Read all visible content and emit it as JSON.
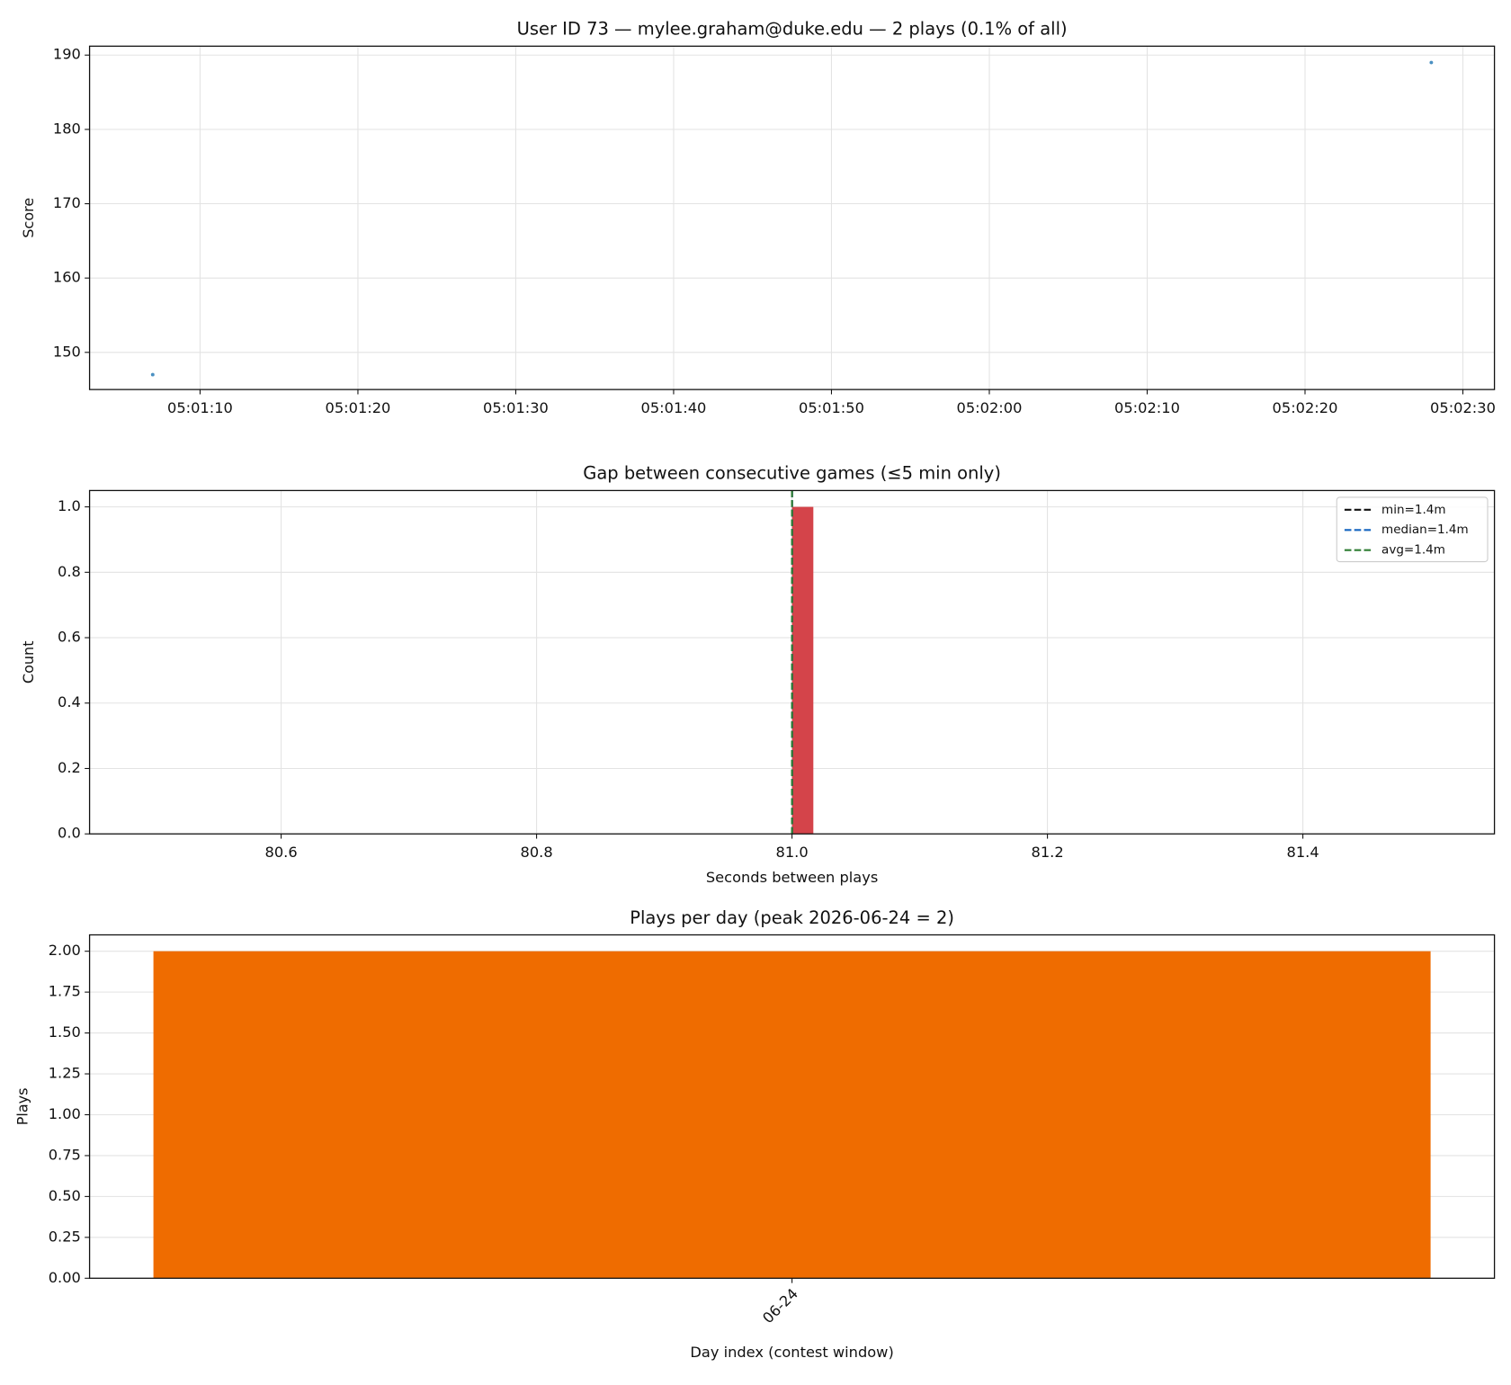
{
  "chart_data": [
    {
      "type": "scatter",
      "title": "User ID 73 — mylee.graham@duke.edu — 2 plays (0.1% of all)",
      "ylabel": "Score",
      "x": [
        "05:01:07",
        "05:02:28"
      ],
      "values": [
        147,
        189
      ],
      "color": "#4a90c2",
      "xlim": [
        "05:01:03",
        "05:02:32"
      ],
      "xticks": [
        "05:01:10",
        "05:01:20",
        "05:01:30",
        "05:01:40",
        "05:01:50",
        "05:02:00",
        "05:02:10",
        "05:02:20",
        "05:02:30"
      ],
      "ylim": [
        145,
        191.2
      ],
      "yticks": [
        150,
        160,
        170,
        180,
        190
      ],
      "grid": true
    },
    {
      "type": "histogram",
      "title": "Gap between consecutive games (≤5 min only)",
      "xlabel": "Seconds between plays",
      "ylabel": "Count",
      "bins": [
        81.0,
        81.0167
      ],
      "counts": [
        1
      ],
      "color": "#d4444a",
      "vlines": [
        {
          "name": "min=1.4m",
          "value": 81.0,
          "color": "#111111"
        },
        {
          "name": "median=1.4m",
          "value": 81.0,
          "color": "#1565c0"
        },
        {
          "name": "avg=1.4m",
          "value": 81.0,
          "color": "#2e7d32"
        }
      ],
      "legend": "upper right",
      "xlim": [
        80.45,
        81.55
      ],
      "xticks": [
        80.6,
        80.8,
        {
          "value": 81.0,
          "label": "81.0"
        },
        81.2,
        81.4
      ],
      "ylim": [
        0,
        1.05
      ],
      "yticks": [
        {
          "value": 0,
          "label": "0.0"
        },
        0.2,
        0.4,
        0.6,
        0.8,
        {
          "value": 1,
          "label": "1.0"
        }
      ],
      "grid": true
    },
    {
      "type": "bar",
      "title": "Plays per day (peak 2026-06-24 = 2)",
      "xlabel": "Day index (contest window)",
      "ylabel": "Plays",
      "categories": [
        "06-24"
      ],
      "values": [
        2
      ],
      "color": "#ef6c00",
      "xlim": [
        -0.44,
        0.44
      ],
      "ylim": [
        0,
        2.1
      ],
      "yticks": [
        {
          "value": 0,
          "label": "0.00"
        },
        {
          "value": 0.25,
          "label": "0.25"
        },
        {
          "value": 0.5,
          "label": "0.50"
        },
        {
          "value": 0.75,
          "label": "0.75"
        },
        {
          "value": 1,
          "label": "1.00"
        },
        {
          "value": 1.25,
          "label": "1.25"
        },
        {
          "value": 1.5,
          "label": "1.50"
        },
        {
          "value": 1.75,
          "label": "1.75"
        },
        {
          "value": 2,
          "label": "2.00"
        }
      ],
      "grid": true
    }
  ]
}
